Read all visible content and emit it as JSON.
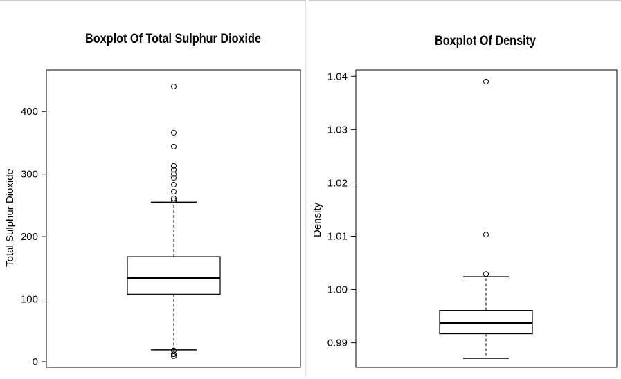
{
  "chart_data": [
    {
      "type": "box",
      "title": "Boxplot Of Total Sulphur Dioxide",
      "xlabel": "",
      "ylabel": "Total Sulphur Dioxide",
      "ylim": [
        0,
        450
      ],
      "yticks": [
        0,
        100,
        200,
        300,
        400
      ],
      "ytick_labels": [
        "0",
        "100",
        "200",
        "300",
        "400"
      ],
      "grid": false,
      "box": {
        "whisker_low": 19,
        "q1": 108,
        "median": 134,
        "q3": 168,
        "whisker_high": 255
      },
      "outliers": [
        9,
        12,
        18,
        258,
        261,
        272,
        283,
        294,
        300,
        307,
        313,
        344,
        366,
        440
      ]
    },
    {
      "type": "box",
      "title": "Boxplot Of Density",
      "xlabel": "",
      "ylabel": "Density",
      "ylim": [
        0.9871,
        1.039
      ],
      "yticks": [
        0.99,
        1.0,
        1.01,
        1.02,
        1.03,
        1.04
      ],
      "ytick_labels": [
        "0.99",
        "1.00",
        "1.01",
        "1.02",
        "1.03",
        "1.04"
      ],
      "grid": false,
      "box": {
        "whisker_low": 0.9871,
        "q1": 0.9917,
        "median": 0.9937,
        "q3": 0.9961,
        "whisker_high": 1.0024
      },
      "outliers": [
        1.0029,
        1.0103,
        1.039
      ]
    }
  ]
}
